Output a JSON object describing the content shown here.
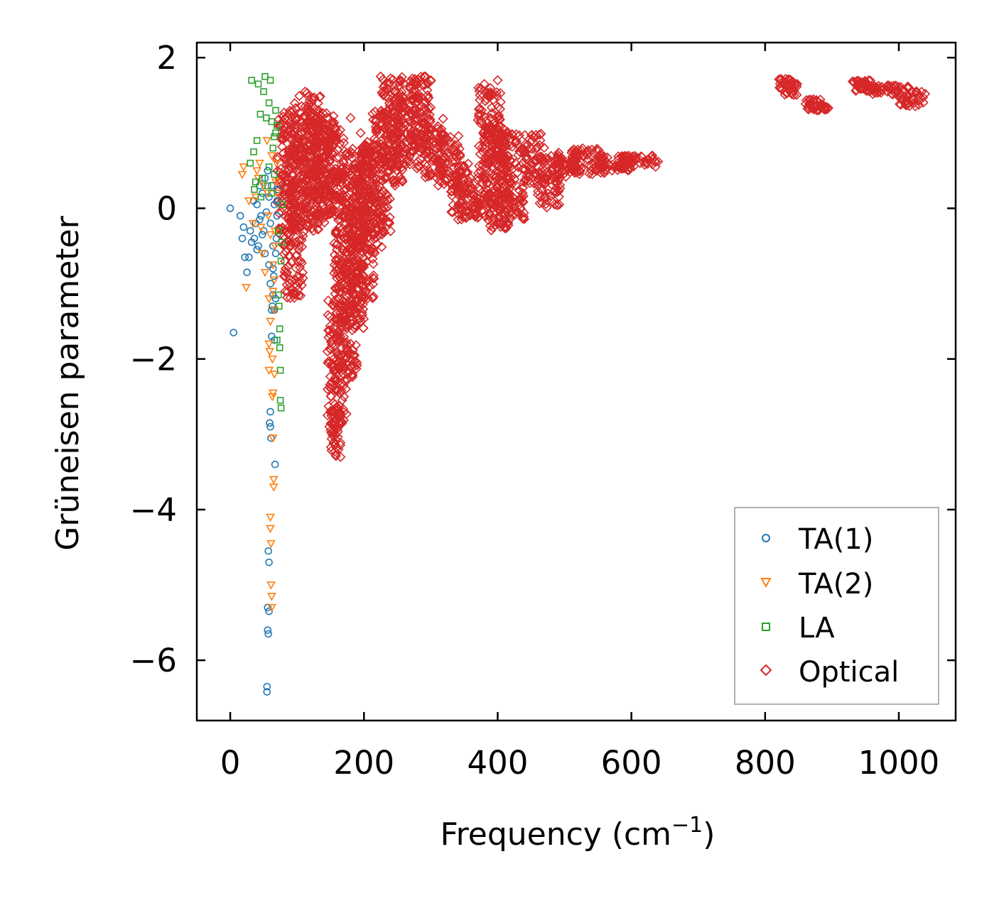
{
  "chart_data": {
    "type": "scatter",
    "title": "",
    "xlabel": "Frequency (cm",
    "xlabel_sup": "−1",
    "xlabel_close": ")",
    "ylabel": "Grüneisen parameter",
    "xlim": [
      -50,
      1085
    ],
    "ylim": [
      -6.8,
      2.2
    ],
    "x_ticks": [
      0,
      200,
      400,
      600,
      800,
      1000
    ],
    "x_tick_labels": [
      "0",
      "200",
      "400",
      "600",
      "800",
      "1000"
    ],
    "y_ticks": [
      2,
      0,
      -2,
      -4,
      -6
    ],
    "y_tick_labels": [
      "2",
      "0",
      "−2",
      "−4",
      "−6"
    ],
    "grid": false,
    "legend_position": "bottom-right",
    "series": [
      {
        "name": "TA(1)",
        "marker": "circle",
        "color": "#1f77b4",
        "points": [
          [
            0,
            0
          ],
          [
            5,
            -1.65
          ],
          [
            15,
            -0.1
          ],
          [
            18,
            -0.4
          ],
          [
            20,
            -0.25
          ],
          [
            22,
            -0.65
          ],
          [
            25,
            -0.85
          ],
          [
            28,
            -0.65
          ],
          [
            30,
            -0.3
          ],
          [
            32,
            -0.45
          ],
          [
            35,
            0.1
          ],
          [
            38,
            -0.2
          ],
          [
            40,
            0.05
          ],
          [
            42,
            -0.5
          ],
          [
            44,
            0.3
          ],
          [
            46,
            -0.1
          ],
          [
            48,
            0.2
          ],
          [
            50,
            -0.3
          ],
          [
            52,
            0.4
          ],
          [
            54,
            -0.05
          ],
          [
            55,
            -6.35
          ],
          [
            55,
            -6.42
          ],
          [
            56,
            -5.3
          ],
          [
            56,
            -5.6
          ],
          [
            57,
            -5.65
          ],
          [
            57,
            -4.55
          ],
          [
            58,
            -4.7
          ],
          [
            58,
            -5.35
          ],
          [
            59,
            -2.85
          ],
          [
            60,
            -2.9
          ],
          [
            60,
            -2.7
          ],
          [
            61,
            -3.05
          ],
          [
            62,
            -1.35
          ],
          [
            62,
            -1.7
          ],
          [
            63,
            -1.3
          ],
          [
            64,
            -1.15
          ],
          [
            64,
            -0.8
          ],
          [
            65,
            -0.9
          ],
          [
            66,
            -1.75
          ],
          [
            67,
            -3.4
          ],
          [
            68,
            -1.2
          ],
          [
            68,
            -0.6
          ],
          [
            69,
            -0.4
          ],
          [
            70,
            -0.1
          ],
          [
            70,
            0.1
          ],
          [
            71,
            0.25
          ],
          [
            56,
            0.5
          ],
          [
            58,
            0.15
          ],
          [
            60,
            -0.2
          ],
          [
            62,
            0.3
          ],
          [
            64,
            -0.5
          ],
          [
            66,
            0.05
          ],
          [
            52,
            -0.6
          ],
          [
            48,
            -0.35
          ],
          [
            44,
            -0.15
          ],
          [
            40,
            -0.55
          ],
          [
            36,
            -0.4
          ],
          [
            58,
            -0.75
          ],
          [
            60,
            -1.0
          ],
          [
            66,
            -1.35
          ]
        ]
      },
      {
        "name": "TA(2)",
        "marker": "triangle-down",
        "color": "#ff7f0e",
        "points": [
          [
            18,
            0.45
          ],
          [
            20,
            0.55
          ],
          [
            24,
            -1.05
          ],
          [
            28,
            0.1
          ],
          [
            34,
            -0.2
          ],
          [
            40,
            0.5
          ],
          [
            44,
            0.6
          ],
          [
            48,
            -0.6
          ],
          [
            52,
            -0.85
          ],
          [
            55,
            0.9
          ],
          [
            56,
            0.2
          ],
          [
            57,
            -0.1
          ],
          [
            58,
            -1.8
          ],
          [
            58,
            -2.15
          ],
          [
            59,
            -1.9
          ],
          [
            60,
            -4.1
          ],
          [
            60,
            -4.25
          ],
          [
            61,
            -4.45
          ],
          [
            61,
            -5.0
          ],
          [
            62,
            -5.15
          ],
          [
            62,
            -5.3
          ],
          [
            63,
            -2.5
          ],
          [
            63,
            -2.0
          ],
          [
            64,
            -2.45
          ],
          [
            64,
            -3.05
          ],
          [
            65,
            -3.7
          ],
          [
            65,
            -3.6
          ],
          [
            66,
            -1.35
          ],
          [
            66,
            -0.95
          ],
          [
            67,
            -0.5
          ],
          [
            67,
            -0.3
          ],
          [
            68,
            0.35
          ],
          [
            69,
            0.6
          ],
          [
            70,
            0.2
          ],
          [
            60,
            -0.35
          ],
          [
            62,
            0.7
          ],
          [
            64,
            -0.75
          ],
          [
            50,
            0.3
          ],
          [
            46,
            -0.25
          ],
          [
            42,
            0.4
          ],
          [
            38,
            0.15
          ],
          [
            58,
            -1.2
          ],
          [
            60,
            -1.5
          ],
          [
            66,
            -2.2
          ],
          [
            64,
            -1.1
          ]
        ]
      },
      {
        "name": "LA",
        "marker": "square",
        "color": "#2ca02c",
        "points": [
          [
            30,
            0.6
          ],
          [
            32,
            1.7
          ],
          [
            35,
            0.75
          ],
          [
            38,
            0.35
          ],
          [
            40,
            0.9
          ],
          [
            42,
            1.65
          ],
          [
            45,
            1.25
          ],
          [
            48,
            0.4
          ],
          [
            50,
            1.55
          ],
          [
            52,
            1.75
          ],
          [
            54,
            1.2
          ],
          [
            56,
            0.3
          ],
          [
            58,
            1.4
          ],
          [
            60,
            1.7
          ],
          [
            62,
            1.15
          ],
          [
            64,
            0.8
          ],
          [
            66,
            0.95
          ],
          [
            68,
            1.3
          ],
          [
            70,
            1.1
          ],
          [
            72,
            -0.3
          ],
          [
            72,
            -1.15
          ],
          [
            73,
            -1.3
          ],
          [
            74,
            -1.85
          ],
          [
            74,
            -1.6
          ],
          [
            75,
            -2.15
          ],
          [
            75,
            -2.55
          ],
          [
            76,
            -2.65
          ],
          [
            76,
            -0.7
          ],
          [
            77,
            -0.45
          ],
          [
            78,
            0.05
          ],
          [
            70,
            -1.75
          ],
          [
            68,
            1.0
          ],
          [
            66,
            0.45
          ],
          [
            62,
            0.2
          ],
          [
            58,
            0.55
          ],
          [
            46,
            0.15
          ],
          [
            36,
            0.25
          ]
        ]
      },
      {
        "name": "Optical",
        "marker": "diamond",
        "color": "#d62728",
        "bands": [
          [
            70,
            100,
            -0.5,
            1.3
          ],
          [
            80,
            110,
            -1.2,
            1.0
          ],
          [
            95,
            135,
            -0.3,
            1.55
          ],
          [
            110,
            145,
            -0.2,
            1.35
          ],
          [
            125,
            160,
            -0.1,
            1.25
          ],
          [
            140,
            170,
            0.1,
            1.05
          ],
          [
            145,
            175,
            -2.9,
            -1.2
          ],
          [
            150,
            165,
            -3.3,
            -2.6
          ],
          [
            155,
            190,
            -2.3,
            0.0
          ],
          [
            165,
            200,
            -1.6,
            0.8
          ],
          [
            180,
            215,
            -1.2,
            0.6
          ],
          [
            195,
            230,
            -0.6,
            0.9
          ],
          [
            210,
            240,
            -0.4,
            1.3
          ],
          [
            225,
            260,
            0.3,
            1.75
          ],
          [
            245,
            285,
            0.5,
            1.7
          ],
          [
            270,
            300,
            0.8,
            1.75
          ],
          [
            285,
            320,
            0.4,
            1.2
          ],
          [
            310,
            345,
            0.3,
            1.0
          ],
          [
            330,
            360,
            -0.1,
            0.6
          ],
          [
            340,
            375,
            -0.15,
            0.3
          ],
          [
            370,
            405,
            0.0,
            1.6
          ],
          [
            380,
            420,
            -0.3,
            1.1
          ],
          [
            400,
            440,
            -0.2,
            1.0
          ],
          [
            440,
            470,
            0.3,
            1.0
          ],
          [
            460,
            495,
            0.0,
            0.7
          ],
          [
            480,
            520,
            0.4,
            0.75
          ],
          [
            510,
            560,
            0.45,
            0.8
          ],
          [
            550,
            600,
            0.5,
            0.7
          ],
          [
            580,
            640,
            0.55,
            0.7
          ],
          [
            820,
            850,
            1.5,
            1.72
          ],
          [
            860,
            895,
            1.3,
            1.45
          ],
          [
            930,
            960,
            1.55,
            1.7
          ],
          [
            960,
            1000,
            1.5,
            1.65
          ],
          [
            1000,
            1040,
            1.35,
            1.62
          ]
        ],
        "points": [
          [
            180,
            1.2
          ],
          [
            195,
            1.0
          ],
          [
            400,
            1.7
          ],
          [
            380,
            1.65
          ],
          [
            170,
            -2.5
          ],
          [
            165,
            -3.3
          ],
          [
            162,
            -3.2
          ],
          [
            112,
            1.55
          ],
          [
            290,
            1.75
          ],
          [
            225,
            1.75
          ],
          [
            300,
            1.7
          ],
          [
            600,
            0.65
          ],
          [
            640,
            0.62
          ]
        ]
      }
    ]
  }
}
